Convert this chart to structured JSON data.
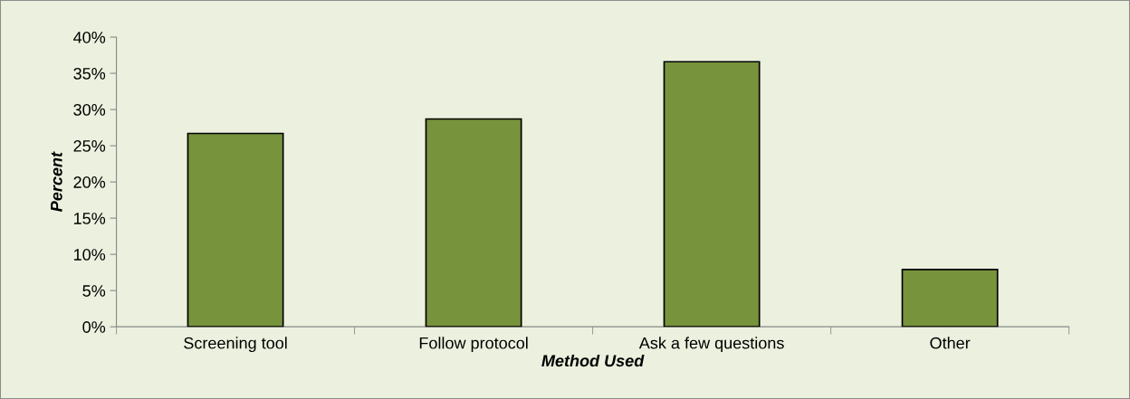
{
  "chart_data": {
    "type": "bar",
    "xlabel": "Method Used",
    "ylabel": "Percent",
    "categories": [
      "Screening tool",
      "Follow protocol",
      "Ask a few questions",
      "Other"
    ],
    "values": [
      26.7,
      28.7,
      36.6,
      7.9
    ],
    "color": "#77933c",
    "ylim": [
      0,
      40
    ],
    "yticks": [
      {
        "value": 0,
        "label": "0%"
      },
      {
        "value": 5,
        "label": "5%"
      },
      {
        "value": 10,
        "label": "10%"
      },
      {
        "value": 15,
        "label": "15%"
      },
      {
        "value": 20,
        "label": "20%"
      },
      {
        "value": 25,
        "label": "25%"
      },
      {
        "value": 30,
        "label": "30%"
      },
      {
        "value": 35,
        "label": "35%"
      },
      {
        "value": 40,
        "label": "40%"
      }
    ],
    "grid": false,
    "legend": false
  }
}
